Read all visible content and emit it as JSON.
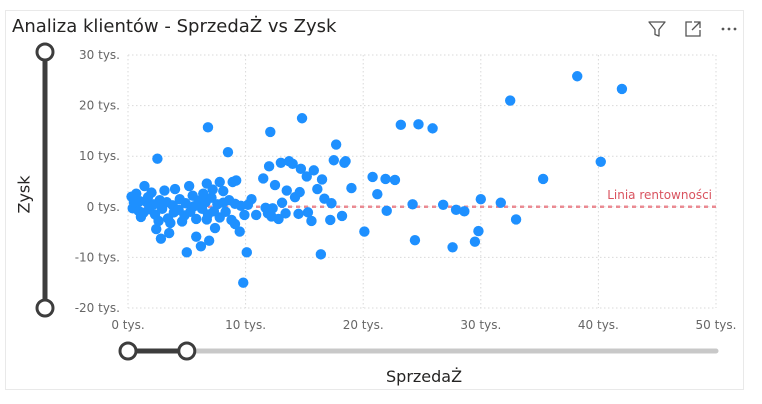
{
  "title": "Analiza klientów - SprzedaŻ vs Zysk",
  "icons": [
    "filter-icon",
    "expand-icon",
    "more-options-icon"
  ],
  "colors": {
    "points": "#1E90FF",
    "refline": "#E8707A",
    "slider": "#3d3d3d",
    "track": "#c8c8c8"
  },
  "chart_data": {
    "type": "scatter",
    "xlabel": "SprzedaŻ",
    "ylabel": "Zysk",
    "xlim": [
      0,
      50000
    ],
    "ylim": [
      -20000,
      30000
    ],
    "xticks": [
      {
        "v": 0,
        "label": "0 tys."
      },
      {
        "v": 10000,
        "label": "10 tys."
      },
      {
        "v": 20000,
        "label": "20 tys."
      },
      {
        "v": 30000,
        "label": "30 tys."
      },
      {
        "v": 40000,
        "label": "40 tys."
      },
      {
        "v": 50000,
        "label": "50 tys."
      }
    ],
    "yticks": [
      {
        "v": 30000,
        "label": "30 tys."
      },
      {
        "v": 20000,
        "label": "20 tys."
      },
      {
        "v": 10000,
        "label": "10 tys."
      },
      {
        "v": 0,
        "label": "0 tys."
      },
      {
        "v": -10000,
        "label": "-10 tys."
      },
      {
        "v": -20000,
        "label": "-20 tys."
      }
    ],
    "grid": true,
    "reference_line": {
      "y": 0,
      "label": "Linia rentowności"
    },
    "x_slider_range": [
      0,
      5000
    ],
    "y_slider_range": [
      -20000,
      30000
    ],
    "points": [
      [
        38200,
        25800
      ],
      [
        42000,
        23300
      ],
      [
        32500,
        21000
      ],
      [
        23200,
        16200
      ],
      [
        24700,
        16300
      ],
      [
        25900,
        15500
      ],
      [
        14800,
        17500
      ],
      [
        12100,
        14800
      ],
      [
        6800,
        15700
      ],
      [
        40200,
        8900
      ],
      [
        35300,
        5500
      ],
      [
        17700,
        12300
      ],
      [
        2500,
        9500
      ],
      [
        8500,
        10800
      ],
      [
        12000,
        8000
      ],
      [
        13000,
        8700
      ],
      [
        13700,
        9000
      ],
      [
        14000,
        8500
      ],
      [
        14700,
        7500
      ],
      [
        15200,
        6000
      ],
      [
        15800,
        7200
      ],
      [
        16500,
        5400
      ],
      [
        16100,
        3500
      ],
      [
        17500,
        9200
      ],
      [
        18400,
        8700
      ],
      [
        18500,
        9000
      ],
      [
        19000,
        3700
      ],
      [
        20800,
        5900
      ],
      [
        21900,
        5500
      ],
      [
        22700,
        5300
      ],
      [
        21200,
        2500
      ],
      [
        11500,
        5600
      ],
      [
        12500,
        4300
      ],
      [
        13500,
        3200
      ],
      [
        14200,
        1900
      ],
      [
        14600,
        2900
      ],
      [
        16700,
        1600
      ],
      [
        17300,
        700
      ],
      [
        30000,
        1500
      ],
      [
        31700,
        800
      ],
      [
        24200,
        500
      ],
      [
        26800,
        400
      ],
      [
        28600,
        -900
      ],
      [
        27900,
        -600
      ],
      [
        22000,
        -800
      ],
      [
        18200,
        -1800
      ],
      [
        17200,
        -2600
      ],
      [
        20100,
        -4900
      ],
      [
        15300,
        -1100
      ],
      [
        14500,
        -1400
      ],
      [
        13400,
        -1300
      ],
      [
        12200,
        -1900
      ],
      [
        10900,
        -1600
      ],
      [
        9900,
        -1600
      ],
      [
        9500,
        -4900
      ],
      [
        9100,
        -3400
      ],
      [
        8300,
        -1000
      ],
      [
        8100,
        3100
      ],
      [
        29800,
        -4800
      ],
      [
        29500,
        -6900
      ],
      [
        27600,
        -8000
      ],
      [
        24400,
        -6600
      ],
      [
        33000,
        -2500
      ],
      [
        16400,
        -9400
      ],
      [
        11900,
        -1300
      ],
      [
        10100,
        -9000
      ],
      [
        9800,
        -15000
      ],
      [
        5000,
        -9000
      ],
      [
        2400,
        -4400
      ],
      [
        2800,
        -6300
      ],
      [
        3500,
        -5200
      ],
      [
        5800,
        -5900
      ],
      [
        6200,
        -7800
      ],
      [
        6900,
        -6700
      ],
      [
        7400,
        -4200
      ],
      [
        6700,
        -2500
      ],
      [
        11700,
        -200
      ],
      [
        12300,
        -300
      ],
      [
        10500,
        1500
      ],
      [
        8900,
        4900
      ],
      [
        9200,
        5200
      ],
      [
        7800,
        4900
      ],
      [
        6700,
        4600
      ],
      [
        5200,
        4100
      ],
      [
        4000,
        3500
      ],
      [
        3100,
        3200
      ],
      [
        2000,
        2800
      ],
      [
        1400,
        4100
      ],
      [
        700,
        2600
      ],
      [
        300,
        2000
      ],
      [
        1000,
        1100
      ],
      [
        1600,
        900
      ],
      [
        2200,
        500
      ],
      [
        2700,
        1300
      ],
      [
        3300,
        900
      ],
      [
        3800,
        300
      ],
      [
        4400,
        1500
      ],
      [
        4900,
        700
      ],
      [
        5500,
        2200
      ],
      [
        6000,
        1200
      ],
      [
        6600,
        900
      ],
      [
        7100,
        1800
      ],
      [
        7600,
        500
      ],
      [
        8100,
        800
      ],
      [
        8600,
        1300
      ],
      [
        9100,
        600
      ],
      [
        9600,
        200
      ],
      [
        10200,
        400
      ],
      [
        400,
        -300
      ],
      [
        900,
        -800
      ],
      [
        1300,
        -1200
      ],
      [
        1800,
        -500
      ],
      [
        2300,
        -1500
      ],
      [
        2900,
        -400
      ],
      [
        3400,
        -2300
      ],
      [
        3900,
        -1100
      ],
      [
        4300,
        -600
      ],
      [
        4800,
        -1700
      ],
      [
        5300,
        -1000
      ],
      [
        5800,
        -2400
      ],
      [
        6300,
        -400
      ],
      [
        6800,
        -1500
      ],
      [
        7300,
        -900
      ],
      [
        7800,
        -2100
      ],
      [
        8800,
        -2600
      ],
      [
        500,
        900
      ],
      [
        1100,
        -2000
      ],
      [
        1700,
        1900
      ],
      [
        2600,
        -2800
      ],
      [
        3600,
        -3200
      ],
      [
        4600,
        -2900
      ],
      [
        5600,
        100
      ],
      [
        6400,
        2600
      ],
      [
        7200,
        3400
      ],
      [
        15600,
        -2800
      ],
      [
        13100,
        800
      ],
      [
        12800,
        -2400
      ]
    ]
  }
}
